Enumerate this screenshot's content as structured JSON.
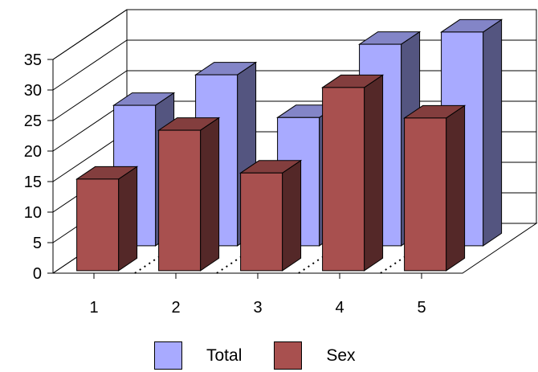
{
  "chart_data": {
    "type": "bar",
    "categories": [
      "1",
      "2",
      "3",
      "4",
      "5"
    ],
    "series": [
      {
        "name": "Total",
        "values": [
          23,
          28,
          21,
          33,
          35
        ],
        "color": "#a8aaff"
      },
      {
        "name": "Sex",
        "values": [
          15,
          23,
          16,
          30,
          25
        ],
        "color": "#a8504f"
      }
    ],
    "y_ticks": [
      "0",
      "5",
      "10",
      "15",
      "20",
      "25",
      "30",
      "35"
    ],
    "ylim": [
      0,
      35
    ],
    "grid": true,
    "legend_position": "bottom",
    "style": "3d"
  }
}
